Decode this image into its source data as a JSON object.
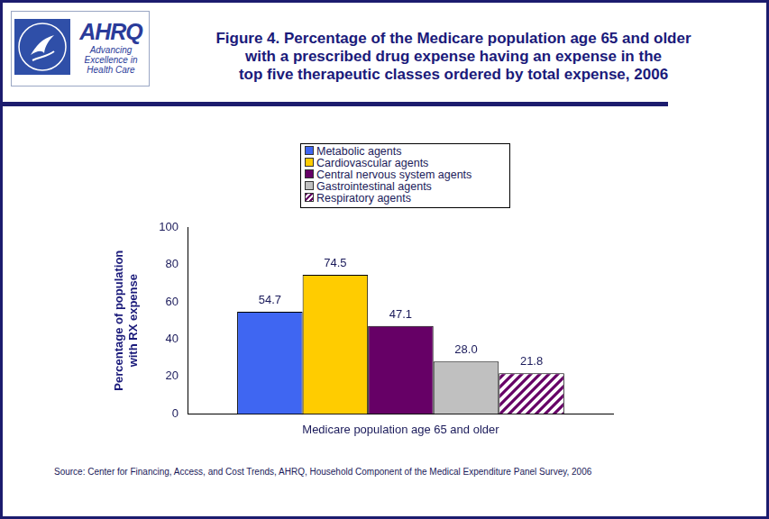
{
  "header": {
    "logo": {
      "name": "AHRQ",
      "tagline": [
        "Advancing",
        "Excellence in",
        "Health Care"
      ]
    }
  },
  "chart_data": {
    "type": "bar",
    "title": [
      "Figure 4. Percentage of the Medicare population age 65 and older",
      "with a prescribed drug expense having an expense in the",
      "top five therapeutic classes ordered by total expense, 2006"
    ],
    "y_label": [
      "Percentage of population",
      "with RX expense"
    ],
    "categories": [
      "Medicare population age 65 and older"
    ],
    "series": [
      {
        "name": "Metabolic agents",
        "color": "#3f66f2",
        "values": [
          54.7
        ],
        "value_labels": [
          "54.7"
        ]
      },
      {
        "name": "Cardiovascular agents",
        "color": "#ffcc00",
        "values": [
          74.5
        ],
        "value_labels": [
          "74.5"
        ]
      },
      {
        "name": "Central nervous system agents",
        "color": "#660066",
        "values": [
          47.1
        ],
        "value_labels": [
          "47.1"
        ]
      },
      {
        "name": "Gastrointestinal agents",
        "color": "#c0c0c0",
        "values": [
          28.0
        ],
        "value_labels": [
          "28.0"
        ]
      },
      {
        "name": "Respiratory agents",
        "color": "#660066",
        "values": [
          21.8
        ],
        "value_labels": [
          "21.8"
        ]
      }
    ],
    "ylim": [
      0,
      100
    ],
    "yticks": [
      0,
      20,
      40,
      60,
      80,
      100
    ],
    "grid": false,
    "legend": "top",
    "data_labels": true,
    "annotations": [
      "Source: Center for Financing, Access, and Cost Trends, AHRQ, Household Component of the Medical Expenditure Panel Survey, 2006"
    ]
  }
}
